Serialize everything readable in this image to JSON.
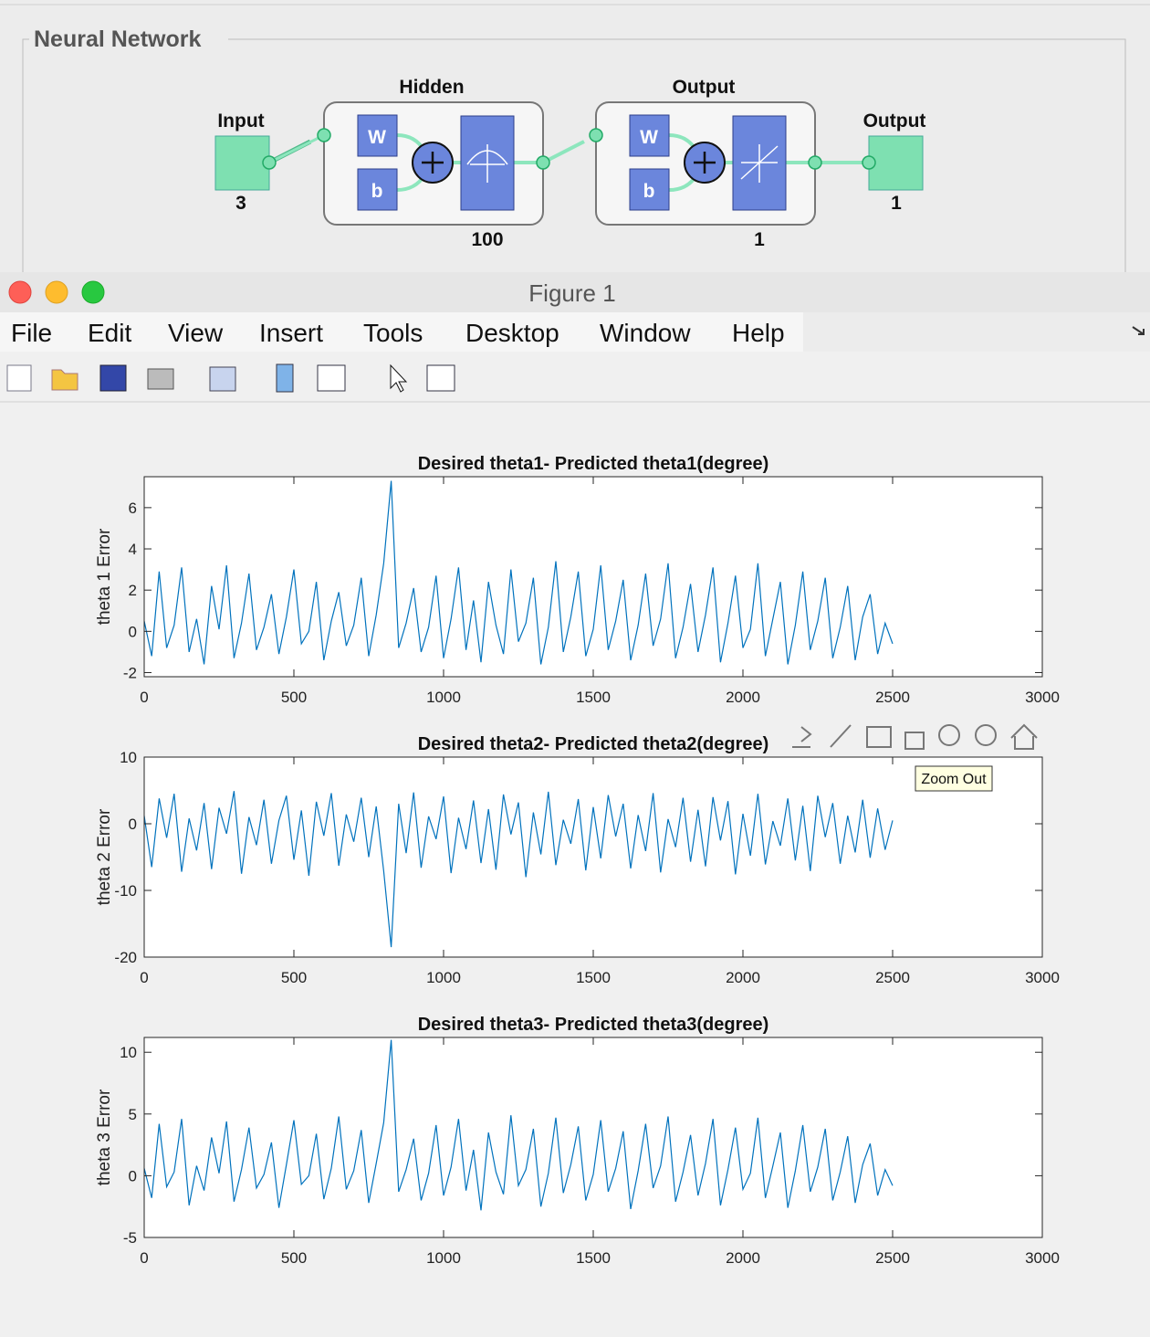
{
  "network": {
    "title": "Neural Network",
    "input": {
      "label": "Input",
      "size": 3
    },
    "hidden": {
      "label": "Hidden",
      "size": 100,
      "weight": "W",
      "bias": "b"
    },
    "output_layer": {
      "label": "Output",
      "size": 1,
      "weight": "W",
      "bias": "b"
    },
    "output": {
      "label": "Output",
      "size": 1
    }
  },
  "window_title": "Figure 1",
  "menu": [
    "File",
    "Edit",
    "View",
    "Insert",
    "Tools",
    "Desktop",
    "Window",
    "Help"
  ],
  "tooltip": "Zoom Out",
  "chart_data": [
    {
      "type": "line",
      "title": "Desired theta1- Predicted theta1(degree)",
      "y_label": "theta 1 Error",
      "xlim": [
        0,
        3000
      ],
      "xticks": [
        0,
        500,
        1000,
        1500,
        2000,
        2500,
        3000
      ],
      "ylim": [
        -2.2,
        7.5
      ],
      "yticks": [
        -2,
        0,
        2,
        4,
        6
      ],
      "x": [
        0,
        25,
        50,
        75,
        100,
        125,
        150,
        175,
        200,
        225,
        250,
        275,
        300,
        325,
        350,
        375,
        400,
        425,
        450,
        475,
        500,
        525,
        550,
        575,
        600,
        625,
        650,
        675,
        700,
        725,
        750,
        775,
        800,
        825,
        850,
        875,
        900,
        925,
        950,
        975,
        1000,
        1025,
        1050,
        1075,
        1100,
        1125,
        1150,
        1175,
        1200,
        1225,
        1250,
        1275,
        1300,
        1325,
        1350,
        1375,
        1400,
        1425,
        1450,
        1475,
        1500,
        1525,
        1550,
        1575,
        1600,
        1625,
        1650,
        1675,
        1700,
        1725,
        1750,
        1775,
        1800,
        1825,
        1850,
        1875,
        1900,
        1925,
        1950,
        1975,
        2000,
        2025,
        2050,
        2075,
        2100,
        2125,
        2150,
        2175,
        2200,
        2225,
        2250,
        2275,
        2300,
        2325,
        2350,
        2375,
        2400,
        2425,
        2450,
        2475,
        2500
      ],
      "series": [
        {
          "name": "theta1",
          "color": "#0072bd",
          "values": [
            0.5,
            -1.2,
            2.9,
            -0.8,
            0.3,
            3.1,
            -1.0,
            0.6,
            -1.6,
            2.2,
            0.1,
            3.2,
            -1.3,
            0.4,
            2.8,
            -0.9,
            0.2,
            1.8,
            -1.1,
            0.7,
            3.0,
            -0.6,
            0.0,
            2.4,
            -1.4,
            0.5,
            1.9,
            -0.7,
            0.3,
            2.6,
            -1.2,
            0.8,
            3.3,
            7.3,
            -0.8,
            0.4,
            2.1,
            -1.0,
            0.2,
            2.7,
            -1.3,
            0.6,
            3.1,
            -0.9,
            1.5,
            -1.5,
            2.4,
            0.3,
            -1.1,
            3.0,
            -0.5,
            0.4,
            2.6,
            -1.6,
            0.2,
            3.4,
            -1.0,
            0.7,
            2.9,
            -1.2,
            0.1,
            3.2,
            -0.9,
            0.5,
            2.5,
            -1.4,
            0.3,
            2.8,
            -0.7,
            0.6,
            3.3,
            -1.3,
            0.2,
            2.3,
            -1.0,
            0.8,
            3.1,
            -1.5,
            0.4,
            2.7,
            -0.8,
            0.1,
            3.3,
            -1.2,
            0.6,
            2.4,
            -1.6,
            0.3,
            2.9,
            -0.9,
            0.5,
            2.6,
            -1.3,
            0.2,
            2.2,
            -1.4,
            0.7,
            1.8,
            -1.1,
            0.4,
            -0.6
          ]
        }
      ]
    },
    {
      "type": "line",
      "title": "Desired theta2- Predicted theta2(degree)",
      "y_label": "theta 2 Error",
      "xlim": [
        0,
        3000
      ],
      "xticks": [
        0,
        500,
        1000,
        1500,
        2000,
        2500,
        3000
      ],
      "ylim": [
        -20,
        10
      ],
      "yticks": [
        -20,
        -10,
        0,
        10
      ],
      "x": [
        0,
        25,
        50,
        75,
        100,
        125,
        150,
        175,
        200,
        225,
        250,
        275,
        300,
        325,
        350,
        375,
        400,
        425,
        450,
        475,
        500,
        525,
        550,
        575,
        600,
        625,
        650,
        675,
        700,
        725,
        750,
        775,
        800,
        825,
        850,
        875,
        900,
        925,
        950,
        975,
        1000,
        1025,
        1050,
        1075,
        1100,
        1125,
        1150,
        1175,
        1200,
        1225,
        1250,
        1275,
        1300,
        1325,
        1350,
        1375,
        1400,
        1425,
        1450,
        1475,
        1500,
        1525,
        1550,
        1575,
        1600,
        1625,
        1650,
        1675,
        1700,
        1725,
        1750,
        1775,
        1800,
        1825,
        1850,
        1875,
        1900,
        1925,
        1950,
        1975,
        2000,
        2025,
        2050,
        2075,
        2100,
        2125,
        2150,
        2175,
        2200,
        2225,
        2250,
        2275,
        2300,
        2325,
        2350,
        2375,
        2400,
        2425,
        2450,
        2475,
        2500
      ],
      "series": [
        {
          "name": "theta2",
          "color": "#0072bd",
          "values": [
            1.2,
            -6.5,
            3.8,
            -2.1,
            4.5,
            -7.2,
            0.8,
            -4.0,
            3.1,
            -6.8,
            2.4,
            -1.5,
            4.9,
            -7.5,
            1.0,
            -3.2,
            3.6,
            -6.0,
            0.5,
            4.2,
            -5.4,
            2.0,
            -7.8,
            3.3,
            -1.8,
            4.6,
            -6.3,
            1.4,
            -2.7,
            3.9,
            -5.0,
            2.6,
            -7.1,
            -18.5,
            3.0,
            -4.4,
            4.7,
            -6.6,
            1.1,
            -2.3,
            4.1,
            -7.4,
            0.9,
            -3.8,
            3.5,
            -5.9,
            2.2,
            -6.9,
            4.4,
            -1.6,
            3.2,
            -8.0,
            1.7,
            -4.6,
            4.8,
            -6.2,
            0.6,
            -3.0,
            3.7,
            -7.0,
            2.5,
            -5.2,
            4.3,
            -1.9,
            3.0,
            -6.7,
            1.3,
            -4.1,
            4.6,
            -7.3,
            0.7,
            -3.5,
            3.9,
            -5.7,
            2.1,
            -6.4,
            4.0,
            -2.5,
            3.4,
            -7.6,
            1.5,
            -4.8,
            4.5,
            -6.1,
            0.4,
            -3.3,
            3.8,
            -5.5,
            2.7,
            -7.1,
            4.2,
            -2.0,
            3.1,
            -6.0,
            1.2,
            -4.3,
            3.6,
            -5.1,
            2.3,
            -3.9,
            0.5
          ]
        }
      ]
    },
    {
      "type": "line",
      "title": "Desired theta3- Predicted theta3(degree)",
      "y_label": "theta 3 Error",
      "xlim": [
        0,
        3000
      ],
      "xticks": [
        0,
        500,
        1000,
        1500,
        2000,
        2500,
        3000
      ],
      "ylim": [
        -5,
        11.2
      ],
      "yticks": [
        -5,
        0,
        5,
        10
      ],
      "x": [
        0,
        25,
        50,
        75,
        100,
        125,
        150,
        175,
        200,
        225,
        250,
        275,
        300,
        325,
        350,
        375,
        400,
        425,
        450,
        475,
        500,
        525,
        550,
        575,
        600,
        625,
        650,
        675,
        700,
        725,
        750,
        775,
        800,
        825,
        850,
        875,
        900,
        925,
        950,
        975,
        1000,
        1025,
        1050,
        1075,
        1100,
        1125,
        1150,
        1175,
        1200,
        1225,
        1250,
        1275,
        1300,
        1325,
        1350,
        1375,
        1400,
        1425,
        1450,
        1475,
        1500,
        1525,
        1550,
        1575,
        1600,
        1625,
        1650,
        1675,
        1700,
        1725,
        1750,
        1775,
        1800,
        1825,
        1850,
        1875,
        1900,
        1925,
        1950,
        1975,
        2000,
        2025,
        2050,
        2075,
        2100,
        2125,
        2150,
        2175,
        2200,
        2225,
        2250,
        2275,
        2300,
        2325,
        2350,
        2375,
        2400,
        2425,
        2450,
        2475,
        2500
      ],
      "series": [
        {
          "name": "theta3",
          "color": "#0072bd",
          "values": [
            0.6,
            -1.8,
            4.2,
            -0.9,
            0.3,
            4.6,
            -2.4,
            0.8,
            -1.2,
            3.1,
            0.2,
            4.4,
            -2.1,
            0.5,
            3.9,
            -1.0,
            0.1,
            2.7,
            -2.6,
            0.9,
            4.5,
            -0.7,
            0.0,
            3.4,
            -1.9,
            0.6,
            4.8,
            -1.1,
            0.4,
            3.7,
            -2.2,
            1.0,
            4.3,
            11.0,
            -1.3,
            0.5,
            3.0,
            -2.0,
            0.2,
            4.1,
            -1.6,
            0.7,
            4.6,
            -1.2,
            2.1,
            -2.8,
            3.5,
            0.3,
            -1.5,
            4.9,
            -0.8,
            0.5,
            3.8,
            -2.5,
            0.2,
            4.7,
            -1.4,
            0.9,
            4.0,
            -2.0,
            0.1,
            4.5,
            -1.3,
            0.6,
            3.6,
            -2.7,
            0.4,
            4.2,
            -1.0,
            0.8,
            4.8,
            -2.1,
            0.3,
            3.3,
            -1.6,
            1.0,
            4.6,
            -2.4,
            0.5,
            3.9,
            -1.1,
            0.2,
            4.7,
            -1.8,
            0.8,
            3.5,
            -2.6,
            0.4,
            4.1,
            -1.3,
            0.7,
            3.8,
            -2.0,
            0.3,
            3.2,
            -2.2,
            0.9,
            2.6,
            -1.6,
            0.5,
            -0.8
          ]
        }
      ]
    }
  ]
}
